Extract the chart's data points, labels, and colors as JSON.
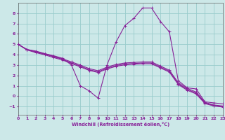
{
  "xlabel": "Windchill (Refroidissement éolien,°C)",
  "xlim": [
    0,
    23
  ],
  "ylim": [
    -1.8,
    9.0
  ],
  "xticks": [
    0,
    1,
    2,
    3,
    4,
    5,
    6,
    7,
    8,
    9,
    10,
    11,
    12,
    13,
    14,
    15,
    16,
    17,
    18,
    19,
    20,
    21,
    22,
    23
  ],
  "yticks": [
    -1,
    0,
    1,
    2,
    3,
    4,
    5,
    6,
    7,
    8
  ],
  "bg_color": "#cce8e8",
  "grid_color": "#99cccc",
  "line_color": "#882299",
  "curve1_x": [
    0,
    1,
    2,
    3,
    4,
    5,
    6,
    7,
    8,
    9,
    10,
    11,
    12,
    13,
    14,
    15,
    16,
    17,
    18,
    19,
    20,
    21,
    22,
    23
  ],
  "curve1_y": [
    5.0,
    4.5,
    4.35,
    4.1,
    3.9,
    3.65,
    3.0,
    1.0,
    0.5,
    -0.2,
    3.0,
    5.2,
    6.8,
    7.5,
    8.5,
    8.5,
    7.2,
    6.2,
    1.5,
    0.8,
    0.7,
    -0.55,
    -0.65,
    -0.75
  ],
  "curve2_x": [
    0,
    1,
    2,
    3,
    4,
    5,
    6,
    7,
    8,
    9,
    10,
    11,
    12,
    13,
    14,
    15,
    16,
    17,
    18,
    19,
    20,
    21,
    22,
    23
  ],
  "curve2_y": [
    5.0,
    4.5,
    4.3,
    4.1,
    3.85,
    3.6,
    3.3,
    3.0,
    2.65,
    2.45,
    2.8,
    3.05,
    3.2,
    3.25,
    3.3,
    3.3,
    2.9,
    2.5,
    1.3,
    0.75,
    0.4,
    -0.6,
    -0.85,
    -0.95
  ],
  "curve3_x": [
    0,
    1,
    2,
    3,
    4,
    5,
    6,
    7,
    8,
    9,
    10,
    11,
    12,
    13,
    14,
    15,
    16,
    17,
    18,
    19,
    20,
    21,
    22,
    23
  ],
  "curve3_y": [
    5.0,
    4.5,
    4.25,
    4.05,
    3.8,
    3.55,
    3.2,
    2.9,
    2.55,
    2.35,
    2.7,
    2.95,
    3.1,
    3.15,
    3.2,
    3.2,
    2.8,
    2.4,
    1.2,
    0.65,
    0.3,
    -0.65,
    -0.9,
    -1.0
  ],
  "curve4_x": [
    0,
    1,
    2,
    3,
    4,
    5,
    6,
    7,
    8,
    9,
    10,
    11,
    12,
    13,
    14,
    15,
    16,
    17,
    18,
    19,
    20,
    21,
    22,
    23
  ],
  "curve4_y": [
    5.0,
    4.45,
    4.2,
    3.98,
    3.72,
    3.48,
    3.15,
    2.82,
    2.48,
    2.28,
    2.62,
    2.87,
    3.02,
    3.08,
    3.12,
    3.12,
    2.72,
    2.32,
    1.12,
    0.57,
    0.22,
    -0.72,
    -0.95,
    -1.05
  ]
}
